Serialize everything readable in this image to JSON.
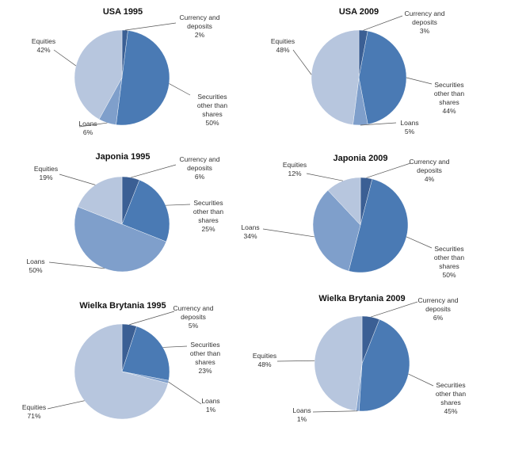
{
  "chart_data": [
    {
      "type": "pie",
      "title": "USA 1995",
      "categories": [
        "Currency and deposits",
        "Securities other than shares",
        "Loans",
        "Equities"
      ],
      "values": [
        2,
        50,
        6,
        42
      ],
      "data_labels": [
        "2%",
        "50%",
        "6%",
        "42%"
      ]
    },
    {
      "type": "pie",
      "title": "USA 2009",
      "categories": [
        "Currency and deposits",
        "Securities other than shares",
        "Loans",
        "Equities"
      ],
      "values": [
        3,
        44,
        5,
        48
      ],
      "data_labels": [
        "3%",
        "44%",
        "5%",
        "48%"
      ]
    },
    {
      "type": "pie",
      "title": "Japonia 1995",
      "categories": [
        "Currency and deposits",
        "Securities other than shares",
        "Loans",
        "Equities"
      ],
      "values": [
        6,
        25,
        50,
        19
      ],
      "data_labels": [
        "6%",
        "25%",
        "50%",
        "19%"
      ]
    },
    {
      "type": "pie",
      "title": "Japonia 2009",
      "categories": [
        "Currency and deposits",
        "Securities other than shares",
        "Loans",
        "Equities"
      ],
      "values": [
        4,
        50,
        34,
        12
      ],
      "data_labels": [
        "4%",
        "50%",
        "34%",
        "12%"
      ]
    },
    {
      "type": "pie",
      "title": "Wielka Brytania 1995",
      "categories": [
        "Currency and deposits",
        "Securities other than shares",
        "Loans",
        "Equities"
      ],
      "values": [
        5,
        23,
        1,
        71
      ],
      "data_labels": [
        "5%",
        "23%",
        "1%",
        "71%"
      ]
    },
    {
      "type": "pie",
      "title": "Wielka Brytania 2009",
      "categories": [
        "Currency and deposits",
        "Securities other than shares",
        "Loans",
        "Equities"
      ],
      "values": [
        6,
        45,
        1,
        48
      ],
      "data_labels": [
        "6%",
        "45%",
        "1%",
        "48%"
      ]
    }
  ],
  "colors": [
    "#3b5f94",
    "#4a7ab4",
    "#7f9fcb",
    "#b7c6de"
  ]
}
